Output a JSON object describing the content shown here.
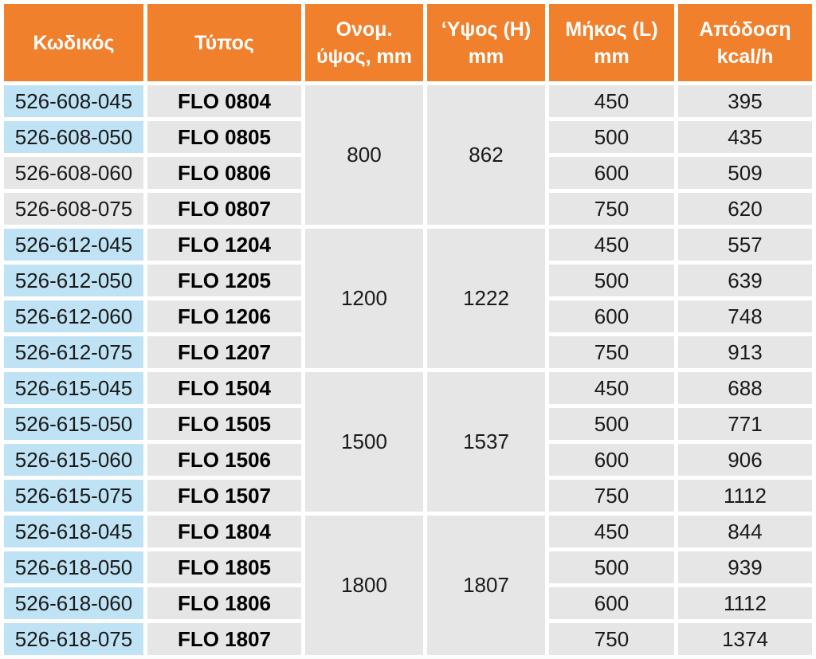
{
  "colors": {
    "header_orange": "#F0802B",
    "code_light_blue": "#BFE3F4",
    "cell_light_gray": "#E7E6E6",
    "header_text": "#FFFFFF",
    "body_text": "#1A1A1A"
  },
  "table": {
    "headers": {
      "code": "Κωδικός",
      "type": "Τύπος",
      "nominal_height": "Ονομ.\nύψος, mm",
      "height": "‘Υψος (H)\nmm",
      "length": "Μήκος (L)\nmm",
      "output": "Απόδοση\nkcal/h"
    },
    "groups": [
      {
        "nominal_height": "800",
        "height_h": "862",
        "rows": [
          {
            "code": "526-608-045",
            "type": "FLO 0804",
            "length": "450",
            "output": "395"
          },
          {
            "code": "526-608-050",
            "type": "FLO 0805",
            "length": "500",
            "output": "435"
          },
          {
            "code": "526-608-060",
            "type": "FLO 0806",
            "length": "600",
            "output": "509"
          },
          {
            "code": "526-608-075",
            "type": "FLO 0807",
            "length": "750",
            "output": "620"
          }
        ]
      },
      {
        "nominal_height": "1200",
        "height_h": "1222",
        "rows": [
          {
            "code": "526-612-045",
            "type": "FLO 1204",
            "length": "450",
            "output": "557"
          },
          {
            "code": "526-612-050",
            "type": "FLO 1205",
            "length": "500",
            "output": "639"
          },
          {
            "code": "526-612-060",
            "type": "FLO 1206",
            "length": "600",
            "output": "748"
          },
          {
            "code": "526-612-075",
            "type": "FLO 1207",
            "length": "750",
            "output": "913"
          }
        ]
      },
      {
        "nominal_height": "1500",
        "height_h": "1537",
        "rows": [
          {
            "code": "526-615-045",
            "type": "FLO 1504",
            "length": "450",
            "output": "688"
          },
          {
            "code": "526-615-050",
            "type": "FLO 1505",
            "length": "500",
            "output": "771"
          },
          {
            "code": "526-615-060",
            "type": "FLO 1506",
            "length": "600",
            "output": "906"
          },
          {
            "code": "526-615-075",
            "type": "FLO 1507",
            "length": "750",
            "output": "1112"
          }
        ]
      },
      {
        "nominal_height": "1800",
        "height_h": "1807",
        "rows": [
          {
            "code": "526-618-045",
            "type": "FLO 1804",
            "length": "450",
            "output": "844"
          },
          {
            "code": "526-618-050",
            "type": "FLO 1805",
            "length": "500",
            "output": "939"
          },
          {
            "code": "526-618-060",
            "type": "FLO 1806",
            "length": "600",
            "output": "1112"
          },
          {
            "code": "526-618-075",
            "type": "FLO 1807",
            "length": "750",
            "output": "1374"
          }
        ]
      }
    ]
  }
}
